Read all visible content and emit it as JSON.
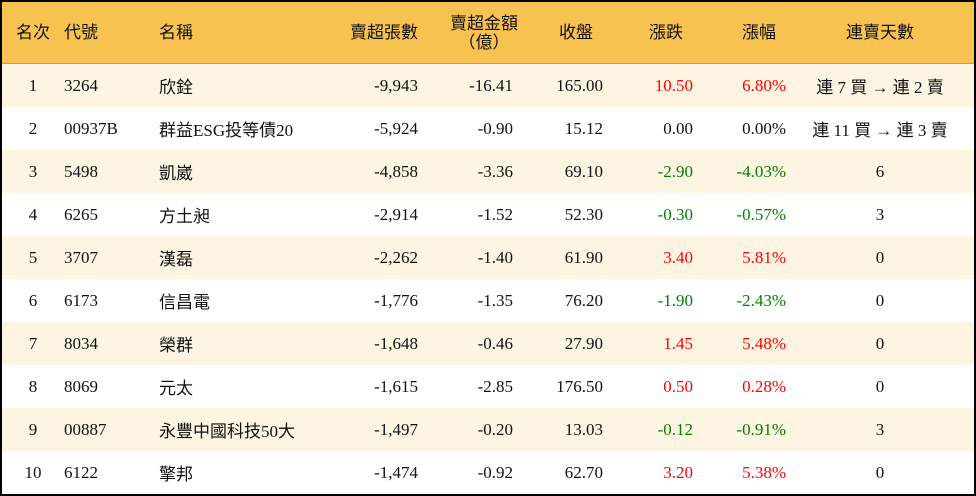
{
  "headers": {
    "rank": "名次",
    "code": "代號",
    "name": "名稱",
    "net_sell_lots": "賣超張數",
    "net_sell_amount_line1": "賣超金額",
    "net_sell_amount_line2": "（億）",
    "close": "收盤",
    "change": "漲跌",
    "change_pct": "漲幅",
    "consecutive_days": "連賣天數"
  },
  "colors": {
    "header_bg": "#f8c250",
    "stripe_bg": "#fdf5e2",
    "up": "#ff0000",
    "down": "#008000"
  },
  "rows": [
    {
      "rank": "1",
      "code": "3264",
      "name": "欣銓",
      "lots": "-9,943",
      "amount": "-16.41",
      "close": "165.00",
      "change": "10.50",
      "pct": "6.80%",
      "trend": "up",
      "days": "連 7 買 → 連 2 賣"
    },
    {
      "rank": "2",
      "code": "00937B",
      "name": "群益ESG投等債20",
      "lots": "-5,924",
      "amount": "-0.90",
      "close": "15.12",
      "change": "0.00",
      "pct": "0.00%",
      "trend": "flat",
      "days": "連 11 買 → 連 3 賣"
    },
    {
      "rank": "3",
      "code": "5498",
      "name": "凱崴",
      "lots": "-4,858",
      "amount": "-3.36",
      "close": "69.10",
      "change": "-2.90",
      "pct": "-4.03%",
      "trend": "down",
      "days": "6"
    },
    {
      "rank": "4",
      "code": "6265",
      "name": "方土昶",
      "lots": "-2,914",
      "amount": "-1.52",
      "close": "52.30",
      "change": "-0.30",
      "pct": "-0.57%",
      "trend": "down",
      "days": "3"
    },
    {
      "rank": "5",
      "code": "3707",
      "name": "漢磊",
      "lots": "-2,262",
      "amount": "-1.40",
      "close": "61.90",
      "change": "3.40",
      "pct": "5.81%",
      "trend": "up",
      "days": "0"
    },
    {
      "rank": "6",
      "code": "6173",
      "name": "信昌電",
      "lots": "-1,776",
      "amount": "-1.35",
      "close": "76.20",
      "change": "-1.90",
      "pct": "-2.43%",
      "trend": "down",
      "days": "0"
    },
    {
      "rank": "7",
      "code": "8034",
      "name": "榮群",
      "lots": "-1,648",
      "amount": "-0.46",
      "close": "27.90",
      "change": "1.45",
      "pct": "5.48%",
      "trend": "up",
      "days": "0"
    },
    {
      "rank": "8",
      "code": "8069",
      "name": "元太",
      "lots": "-1,615",
      "amount": "-2.85",
      "close": "176.50",
      "change": "0.50",
      "pct": "0.28%",
      "trend": "up",
      "days": "0"
    },
    {
      "rank": "9",
      "code": "00887",
      "name": "永豐中國科技50大",
      "lots": "-1,497",
      "amount": "-0.20",
      "close": "13.03",
      "change": "-0.12",
      "pct": "-0.91%",
      "trend": "down",
      "days": "3"
    },
    {
      "rank": "10",
      "code": "6122",
      "name": "擎邦",
      "lots": "-1,474",
      "amount": "-0.92",
      "close": "62.70",
      "change": "3.20",
      "pct": "5.38%",
      "trend": "up",
      "days": "0"
    }
  ]
}
